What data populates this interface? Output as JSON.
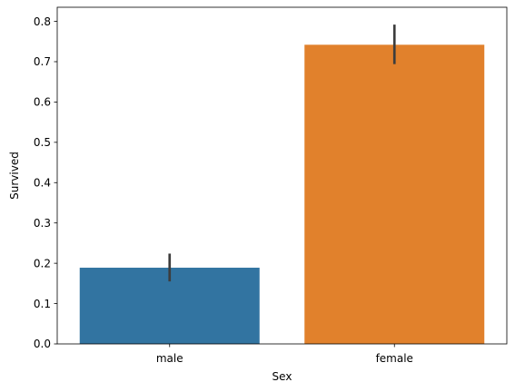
{
  "chart_data": {
    "type": "bar",
    "title": "",
    "xlabel": "Sex",
    "ylabel": "Survived",
    "categories": [
      "male",
      "female"
    ],
    "values": [
      0.189,
      0.742
    ],
    "ci_low": [
      0.155,
      0.694
    ],
    "ci_high": [
      0.224,
      0.792
    ],
    "ylim": [
      0,
      0.835
    ],
    "yticks": [
      0.0,
      0.1,
      0.2,
      0.3,
      0.4,
      0.5,
      0.6,
      0.7,
      0.8
    ],
    "ytick_labels": [
      "0.0",
      "0.1",
      "0.2",
      "0.3",
      "0.4",
      "0.5",
      "0.6",
      "0.7",
      "0.8"
    ],
    "colors": [
      "#3274a1",
      "#e1812c"
    ],
    "errorbar_color": "#3d3d3d",
    "grid": false,
    "legend": "none"
  }
}
